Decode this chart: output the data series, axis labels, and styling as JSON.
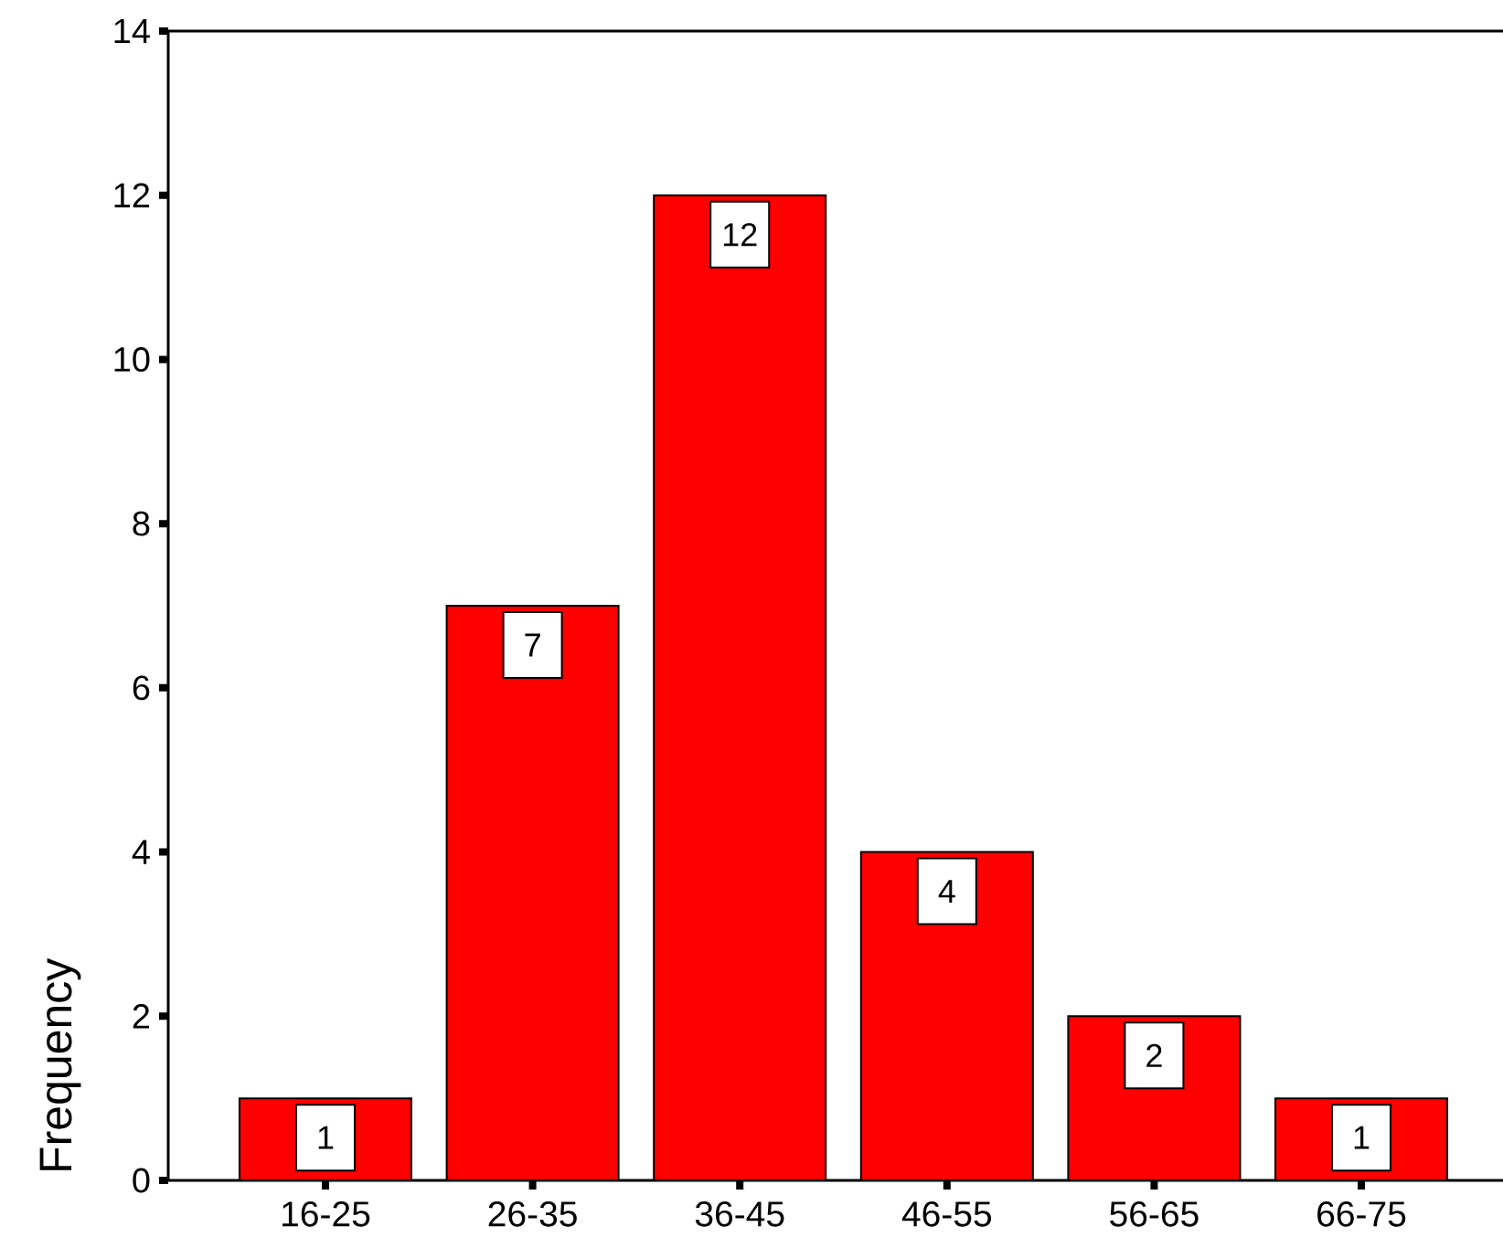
{
  "chart_data": {
    "type": "bar",
    "ylabel": "Frequency",
    "categories": [
      "16-25",
      "26-35",
      "36-45",
      "46-55",
      "56-65",
      "66-75"
    ],
    "values": [
      1,
      7,
      12,
      4,
      2,
      1
    ],
    "color": "#ff0000",
    "ylim": [
      0,
      14
    ],
    "yticks": [
      0,
      2,
      4,
      6,
      8,
      10,
      12,
      14
    ],
    "data_labels": true
  }
}
